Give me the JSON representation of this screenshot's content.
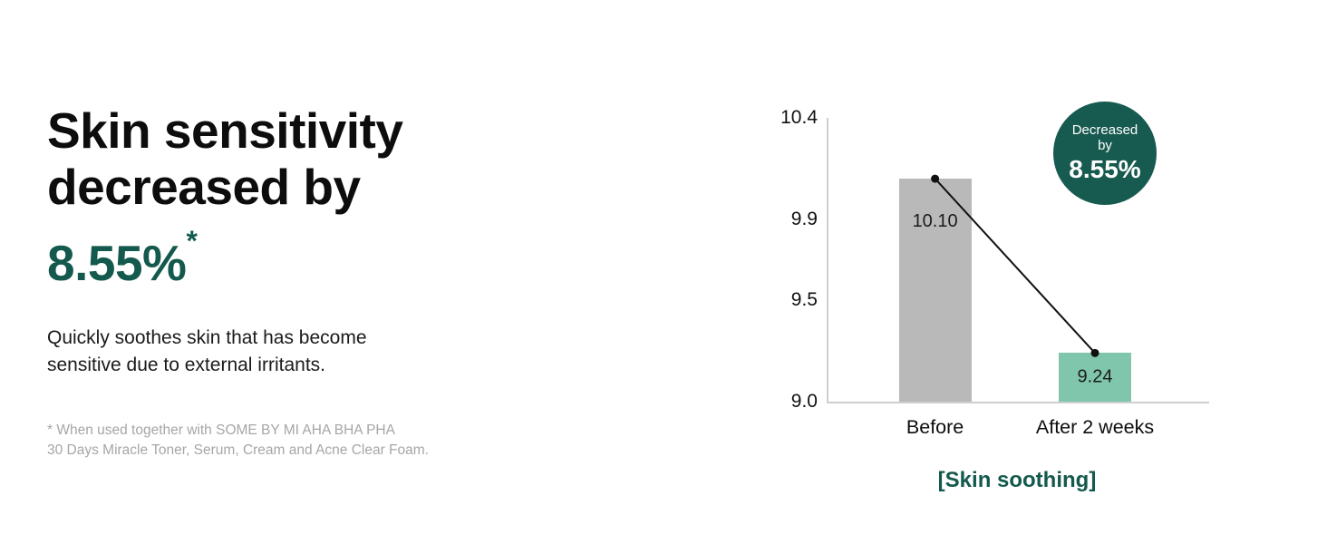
{
  "accent_color": "#14594d",
  "left": {
    "heading_line1": "Skin sensitivity",
    "heading_line2": "decreased by",
    "highlight_value": "8.55%",
    "highlight_asterisk": "*",
    "description_line1": "Quickly soothes skin that has become",
    "description_line2": "sensitive due to external irritants.",
    "footnote_line1": "* When used together with SOME BY MI AHA BHA PHA",
    "footnote_line2": "30 Days Miracle Toner, Serum, Cream and Acne Clear Foam."
  },
  "chart_data": {
    "type": "bar",
    "title": "[Skin soothing]",
    "categories": [
      "Before",
      "After 2 weeks"
    ],
    "values": [
      10.1,
      9.24
    ],
    "value_labels": [
      "10.10",
      "9.24"
    ],
    "bar_colors": [
      "#b9b9b9",
      "#7fc6ad"
    ],
    "ylim": [
      9.0,
      10.4
    ],
    "yticks": [
      10.4,
      9.9,
      9.5,
      9.0
    ],
    "ytick_labels": [
      "10.4",
      "9.9",
      "9.5",
      "9.0"
    ],
    "grid": false,
    "legend": false,
    "connector": true,
    "connector_color": "#111111",
    "badge": {
      "label": "Decreased by",
      "value": "8.55%",
      "bg": "#175a50"
    }
  }
}
